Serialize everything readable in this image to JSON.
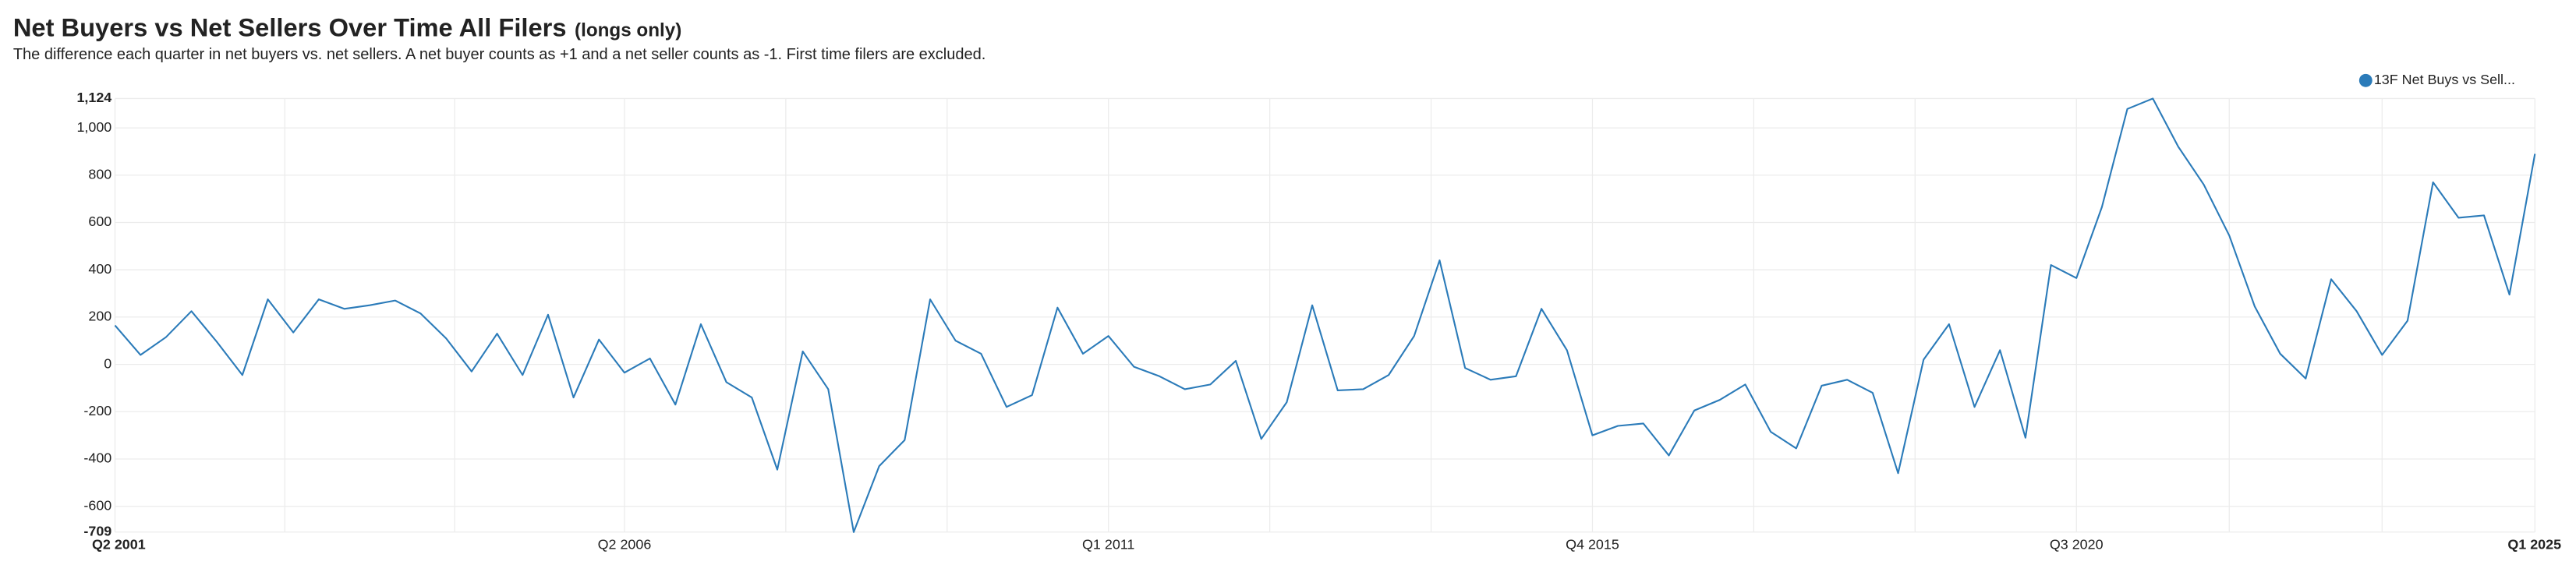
{
  "chart_data": {
    "type": "line",
    "title": "Net Buyers vs Net Sellers Over Time All Filers",
    "title_suffix": "(longs only)",
    "subtitle": "The difference each quarter in net buyers vs. net sellers. A net buyer counts as +1 and a net seller counts as -1. First time filers are excluded.",
    "categories": [
      "Q2 2001",
      null,
      null,
      null,
      null,
      null,
      null,
      null,
      null,
      null,
      null,
      null,
      null,
      null,
      null,
      null,
      null,
      null,
      null,
      null,
      "Q2 2006",
      null,
      null,
      null,
      null,
      null,
      null,
      null,
      null,
      null,
      null,
      null,
      null,
      null,
      null,
      null,
      null,
      null,
      null,
      "Q1 2011",
      null,
      null,
      null,
      null,
      null,
      null,
      null,
      null,
      null,
      null,
      null,
      null,
      null,
      null,
      null,
      null,
      null,
      null,
      "Q4 2015",
      null,
      null,
      null,
      null,
      null,
      null,
      null,
      null,
      null,
      null,
      null,
      null,
      null,
      null,
      null,
      null,
      null,
      null,
      "Q3 2020",
      null,
      null,
      null,
      null,
      null,
      null,
      null,
      null,
      null,
      null,
      null,
      null,
      null,
      null,
      null,
      null,
      null,
      "Q1 2025"
    ],
    "series": [
      {
        "name": "13F Net Buys vs Sell...",
        "color": "#2b7bb9",
        "values": [
          165,
          40,
          115,
          225,
          95,
          -45,
          275,
          135,
          275,
          235,
          250,
          270,
          215,
          110,
          -30,
          130,
          -45,
          210,
          -140,
          105,
          -35,
          25,
          -170,
          170,
          -75,
          -140,
          -445,
          55,
          -105,
          -709,
          -430,
          -320,
          275,
          100,
          45,
          -180,
          -130,
          240,
          45,
          120,
          -10,
          -50,
          -105,
          -85,
          15,
          -315,
          -160,
          250,
          -110,
          -105,
          -45,
          120,
          440,
          -15,
          -65,
          -50,
          235,
          60,
          -300,
          -260,
          -250,
          -385,
          -195,
          -150,
          -85,
          -285,
          -355,
          -90,
          -65,
          -120,
          -460,
          20,
          170,
          -180,
          60,
          -310,
          420,
          365,
          665,
          1080,
          1124,
          920,
          760,
          545,
          245,
          45,
          -60,
          360,
          225,
          40,
          185,
          770,
          620,
          630,
          295,
          890
        ]
      }
    ],
    "ylim": [
      -709,
      1124
    ],
    "yticks": [
      -709,
      -600,
      -400,
      -200,
      0,
      200,
      400,
      600,
      800,
      {
        "value": 1000,
        "label": "1,000"
      },
      {
        "value": 1124,
        "label": "1,124"
      }
    ],
    "grid": true,
    "legend": "top-right"
  }
}
